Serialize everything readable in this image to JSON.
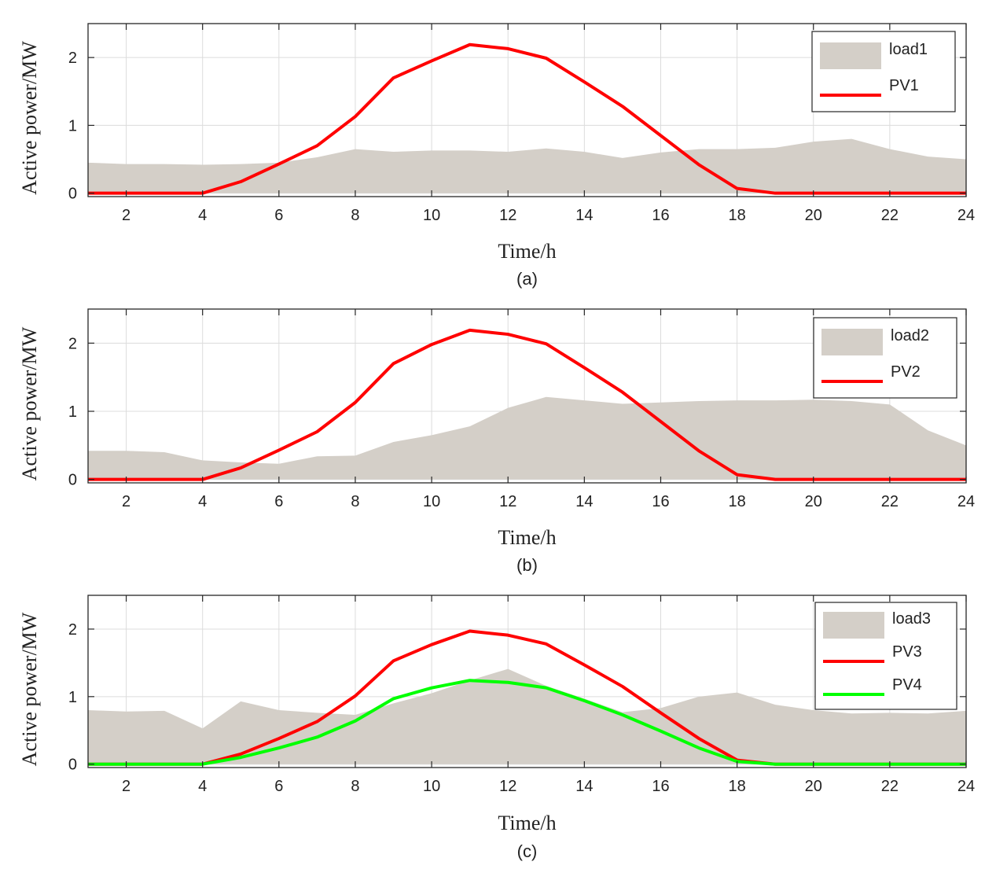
{
  "colors": {
    "load": "#d4cfc8",
    "pv_red": "#ff0000",
    "pv_green": "#00ff00",
    "grid": "#dcdcdc",
    "axis": "#262626"
  },
  "chart_data": [
    {
      "type": "area",
      "caption": "(a)",
      "xlabel": "Time/h",
      "ylabel": "Active power/MW",
      "xlim": [
        1,
        24
      ],
      "ylim": [
        -0.05,
        2.5
      ],
      "xticks": [
        2,
        4,
        6,
        8,
        10,
        12,
        14,
        16,
        18,
        20,
        22,
        24
      ],
      "yticks": [
        0,
        1,
        2
      ],
      "grid": true,
      "legend_position": "top-right",
      "x": [
        1,
        2,
        3,
        4,
        5,
        6,
        7,
        8,
        9,
        10,
        11,
        12,
        13,
        14,
        15,
        16,
        17,
        18,
        19,
        20,
        21,
        22,
        23,
        24
      ],
      "series": [
        {
          "name": "load1",
          "kind": "area",
          "color": "#d4cfc8",
          "values": [
            0.45,
            0.43,
            0.43,
            0.42,
            0.43,
            0.45,
            0.53,
            0.65,
            0.61,
            0.63,
            0.63,
            0.61,
            0.66,
            0.61,
            0.52,
            0.6,
            0.65,
            0.65,
            0.67,
            0.76,
            0.8,
            0.65,
            0.54,
            0.5
          ]
        },
        {
          "name": "PV1",
          "kind": "line",
          "color": "#ff0000",
          "values": [
            0,
            0,
            0,
            0,
            0.17,
            0.43,
            0.7,
            1.13,
            1.7,
            1.95,
            2.19,
            2.13,
            1.99,
            1.64,
            1.28,
            0.85,
            0.42,
            0.07,
            0,
            0,
            0,
            0,
            0,
            0
          ]
        }
      ]
    },
    {
      "type": "area",
      "caption": "(b)",
      "xlabel": "Time/h",
      "ylabel": "Active power/MW",
      "xlim": [
        1,
        24
      ],
      "ylim": [
        -0.05,
        2.5
      ],
      "xticks": [
        2,
        4,
        6,
        8,
        10,
        12,
        14,
        16,
        18,
        20,
        22,
        24
      ],
      "yticks": [
        0,
        1,
        2
      ],
      "grid": true,
      "legend_position": "top-right",
      "x": [
        1,
        2,
        3,
        4,
        5,
        6,
        7,
        8,
        9,
        10,
        11,
        12,
        13,
        14,
        15,
        16,
        17,
        18,
        19,
        20,
        21,
        22,
        23,
        24
      ],
      "series": [
        {
          "name": "load2",
          "kind": "area",
          "color": "#d4cfc8",
          "values": [
            0.42,
            0.42,
            0.4,
            0.28,
            0.25,
            0.23,
            0.34,
            0.35,
            0.55,
            0.65,
            0.78,
            1.05,
            1.21,
            1.16,
            1.11,
            1.13,
            1.15,
            1.16,
            1.16,
            1.17,
            1.15,
            1.1,
            0.72,
            0.5
          ]
        },
        {
          "name": "PV2",
          "kind": "line",
          "color": "#ff0000",
          "values": [
            0,
            0,
            0,
            0,
            0.17,
            0.43,
            0.7,
            1.13,
            1.7,
            1.98,
            2.19,
            2.13,
            1.99,
            1.64,
            1.28,
            0.85,
            0.42,
            0.07,
            0,
            0,
            0,
            0,
            0,
            0
          ]
        }
      ]
    },
    {
      "type": "area",
      "caption": "(c)",
      "xlabel": "Time/h",
      "ylabel": "Active power/MW",
      "xlim": [
        1,
        24
      ],
      "ylim": [
        -0.05,
        2.5
      ],
      "xticks": [
        2,
        4,
        6,
        8,
        10,
        12,
        14,
        16,
        18,
        20,
        22,
        24
      ],
      "yticks": [
        0,
        1,
        2
      ],
      "grid": true,
      "legend_position": "top-right",
      "x": [
        1,
        2,
        3,
        4,
        5,
        6,
        7,
        8,
        9,
        10,
        11,
        12,
        13,
        14,
        15,
        16,
        17,
        18,
        19,
        20,
        21,
        22,
        23,
        24
      ],
      "series": [
        {
          "name": "load3",
          "kind": "area",
          "color": "#d4cfc8",
          "values": [
            0.8,
            0.78,
            0.79,
            0.53,
            0.93,
            0.8,
            0.76,
            0.73,
            0.9,
            1.05,
            1.24,
            1.41,
            1.16,
            0.97,
            0.77,
            0.83,
            1.0,
            1.06,
            0.88,
            0.8,
            0.75,
            0.76,
            0.75,
            0.79
          ]
        },
        {
          "name": "PV3",
          "kind": "line",
          "color": "#ff0000",
          "values": [
            0,
            0,
            0,
            0,
            0.15,
            0.38,
            0.63,
            1.01,
            1.53,
            1.77,
            1.97,
            1.91,
            1.78,
            1.47,
            1.15,
            0.76,
            0.38,
            0.06,
            0,
            0,
            0,
            0,
            0,
            0
          ]
        },
        {
          "name": "PV4",
          "kind": "line",
          "color": "#00ff00",
          "values": [
            0,
            0,
            0,
            0,
            0.1,
            0.24,
            0.4,
            0.64,
            0.97,
            1.13,
            1.24,
            1.21,
            1.13,
            0.94,
            0.73,
            0.49,
            0.24,
            0.04,
            0,
            0,
            0,
            0,
            0,
            0
          ]
        }
      ]
    }
  ]
}
